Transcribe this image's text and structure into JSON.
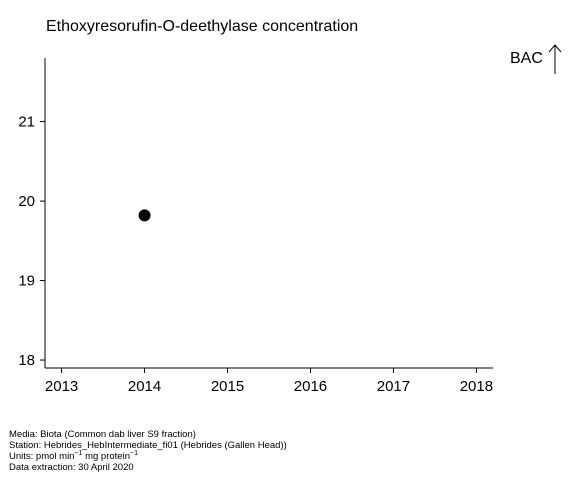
{
  "chart_data": {
    "type": "scatter",
    "title": "Ethoxyresorufin-O-deethylase concentration",
    "xlabel": "",
    "ylabel": "",
    "x_ticks": [
      "2013",
      "2014",
      "2015",
      "2016",
      "2017",
      "2018"
    ],
    "y_ticks": [
      "18",
      "19",
      "20",
      "21"
    ],
    "xlim": [
      2012.8,
      2018.2
    ],
    "ylim": [
      17.9,
      21.8
    ],
    "points": [
      {
        "x": 2014,
        "y": 19.82
      }
    ],
    "grid": false,
    "annotation": {
      "label": "BAC",
      "arrow": "up"
    },
    "marker_color": "#000000"
  },
  "footer": {
    "media": "Media: Biota (Common dab liver S9 fraction)",
    "station": "Station: Hebrides_HebIntermediate_fi01 (Hebrides (Gallen Head))",
    "units_prefix": "Units:  pmol min",
    "units_sup1": "−1",
    "units_middle": " mg protein",
    "units_sup2": "−1",
    "extraction": "Data extraction: 30 April 2020"
  }
}
